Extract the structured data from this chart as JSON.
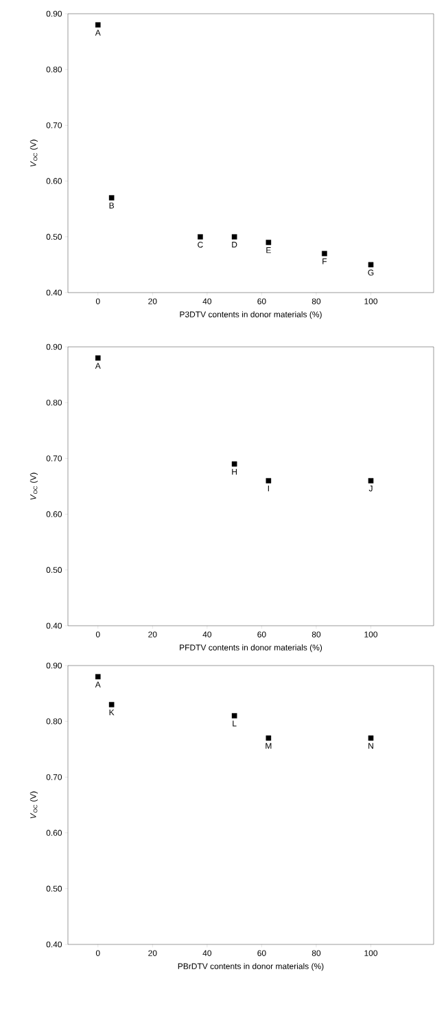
{
  "chart_data": [
    {
      "type": "scatter",
      "xlabel": "P3DTV contents in donor materials (%)",
      "ylabel": "*V*$_{OC}$ (V)",
      "marker": "square",
      "x": [
        0,
        5,
        37.5,
        50,
        62.5,
        83,
        100
      ],
      "series": [
        {
          "color": "#000000",
          "values": [
            0.88,
            0.57,
            0.5,
            0.5,
            0.49,
            0.47,
            0.45
          ]
        }
      ],
      "xlim": [
        -11,
        123
      ],
      "ylim": [
        0.4,
        0.9
      ],
      "xticks": [
        0,
        20,
        40,
        60,
        80,
        100
      ],
      "yticks": [
        {
          "value": 0.4,
          "label": "0.40"
        },
        {
          "value": 0.5,
          "label": "0.50"
        },
        {
          "value": 0.6,
          "label": "0.60"
        },
        {
          "value": 0.7,
          "label": "0.70"
        },
        {
          "value": 0.8,
          "label": "0.80"
        },
        {
          "value": 0.9,
          "label": "0.90"
        }
      ],
      "annotations": [
        {
          "text": "A",
          "x": 0,
          "y": 0.88
        },
        {
          "text": "B",
          "x": 5,
          "y": 0.57
        },
        {
          "text": "C",
          "x": 37.5,
          "y": 0.5
        },
        {
          "text": "D",
          "x": 50,
          "y": 0.5
        },
        {
          "text": "E",
          "x": 62.5,
          "y": 0.49
        },
        {
          "text": "F",
          "x": 83,
          "y": 0.47
        },
        {
          "text": "G",
          "x": 100,
          "y": 0.45
        }
      ]
    },
    {
      "type": "scatter",
      "xlabel": "PFDTV contents in donor materials (%)",
      "ylabel": "*V*$_{OC}$ (V)",
      "marker": "square",
      "x": [
        0,
        50,
        62.5,
        100
      ],
      "series": [
        {
          "color": "#000000",
          "values": [
            0.88,
            0.69,
            0.66,
            0.66
          ]
        }
      ],
      "xlim": [
        -11,
        123
      ],
      "ylim": [
        0.4,
        0.9
      ],
      "xticks": [
        0,
        20,
        40,
        60,
        80,
        100
      ],
      "yticks": [
        {
          "value": 0.4,
          "label": "0.40"
        },
        {
          "value": 0.5,
          "label": "0.50"
        },
        {
          "value": 0.6,
          "label": "0.60"
        },
        {
          "value": 0.7,
          "label": "0.70"
        },
        {
          "value": 0.8,
          "label": "0.80"
        },
        {
          "value": 0.9,
          "label": "0.90"
        }
      ],
      "annotations": [
        {
          "text": "A",
          "x": 0,
          "y": 0.88
        },
        {
          "text": "H",
          "x": 50,
          "y": 0.69
        },
        {
          "text": "I",
          "x": 62.5,
          "y": 0.66
        },
        {
          "text": "J",
          "x": 100,
          "y": 0.66
        }
      ]
    },
    {
      "type": "scatter",
      "xlabel": "PBrDTV contents in donor materials (%)",
      "ylabel": "*V*$_{OC}$ (V)",
      "marker": "square",
      "x": [
        0,
        5,
        50,
        62.5,
        100
      ],
      "series": [
        {
          "color": "#000000",
          "values": [
            0.88,
            0.83,
            0.81,
            0.77,
            0.77
          ]
        }
      ],
      "xlim": [
        -11,
        123
      ],
      "ylim": [
        0.4,
        0.9
      ],
      "xticks": [
        0,
        20,
        40,
        60,
        80,
        100
      ],
      "yticks": [
        {
          "value": 0.4,
          "label": "0.40"
        },
        {
          "value": 0.5,
          "label": "0.50"
        },
        {
          "value": 0.6,
          "label": "0.60"
        },
        {
          "value": 0.7,
          "label": "0.70"
        },
        {
          "value": 0.8,
          "label": "0.80"
        },
        {
          "value": 0.9,
          "label": "0.90"
        }
      ],
      "annotations": [
        {
          "text": "A",
          "x": 0,
          "y": 0.88
        },
        {
          "text": "K",
          "x": 5,
          "y": 0.83
        },
        {
          "text": "L",
          "x": 50,
          "y": 0.81
        },
        {
          "text": "M",
          "x": 62.5,
          "y": 0.77
        },
        {
          "text": "N",
          "x": 100,
          "y": 0.77
        }
      ]
    }
  ]
}
